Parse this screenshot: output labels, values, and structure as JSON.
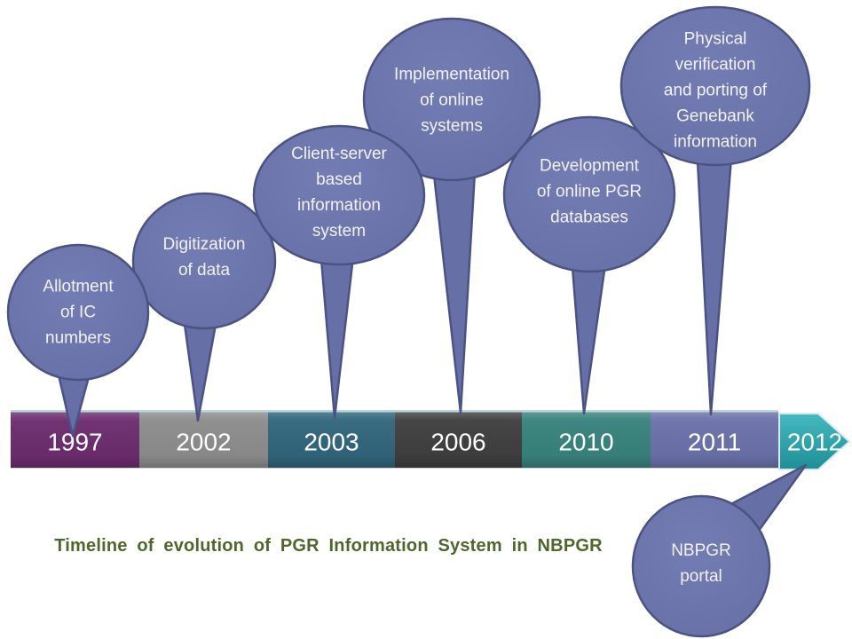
{
  "title": {
    "text": "Timeline of evolution of PGR Information System in NBPGR",
    "color": "#4e672c"
  },
  "callout_style": {
    "fill": "#6770a6",
    "fill_light": "#747db3",
    "stroke": "#4b5383",
    "text_color": "#f2f2f8"
  },
  "arrow_style": {
    "fill_top": "#45bac0",
    "fill_bottom": "#1f8e96",
    "outline": "#d7ebee"
  },
  "timeline_bar": {
    "top_edge_color": "#b9d6e0",
    "bottom_edge_color": "#cdd3d6",
    "year_text_color": "#ffffff"
  },
  "events": [
    {
      "year": "1997",
      "segment_color": "#6c2d6e",
      "label": "Allotment of IC numbers",
      "label_lines": [
        "Allotment",
        "of IC",
        "numbers"
      ],
      "callout_side": "above"
    },
    {
      "year": "2002",
      "segment_color": "#8c8c8c",
      "label": "Digitization of data",
      "label_lines": [
        "Digitization",
        "of data"
      ],
      "callout_side": "above"
    },
    {
      "year": "2003",
      "segment_color": "#31657c",
      "label": "Client-server based information system",
      "label_lines": [
        "Client-server",
        "based",
        "information",
        "system"
      ],
      "callout_side": "above"
    },
    {
      "year": "2006",
      "segment_color": "#3f3f3f",
      "label": "Implementation of online systems",
      "label_lines": [
        "Implementation",
        "of online",
        "systems"
      ],
      "callout_side": "above"
    },
    {
      "year": "2010",
      "segment_color": "#38827c",
      "label": "Development of online PGR databases",
      "label_lines": [
        "Development",
        "of online PGR",
        "databases"
      ],
      "callout_side": "above"
    },
    {
      "year": "2011",
      "segment_color": "#6a71a8",
      "label": "Physical verification and porting of Genebank information",
      "label_lines": [
        "Physical",
        "verification",
        "and porting of",
        "Genebank",
        "information"
      ],
      "callout_side": "above"
    },
    {
      "year": "2012",
      "segment_color": "#2ba3ab",
      "segment_shape": "arrow",
      "label": "NBPGR portal",
      "label_lines": [
        "NBPGR",
        "portal"
      ],
      "callout_side": "below"
    }
  ]
}
